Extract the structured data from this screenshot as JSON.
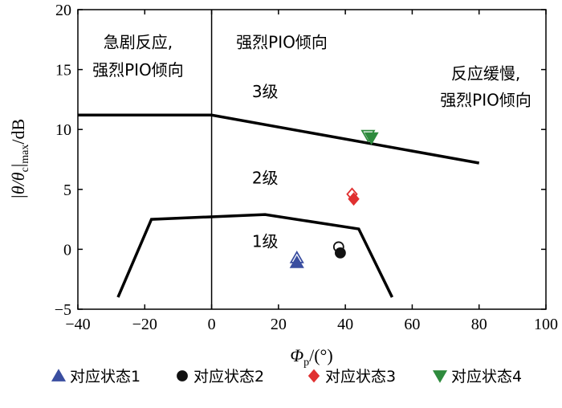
{
  "chart_data": {
    "type": "scatter",
    "title": "",
    "xlabel": {
      "main": "Φ",
      "sub": "p",
      "unit": "/(°)"
    },
    "ylabel": {
      "pre": "|θ/θ",
      "sub1": "c",
      "mid": "|",
      "sub2": "max",
      "unit": "/dB"
    },
    "xlim": [
      -40,
      100
    ],
    "ylim": [
      -5,
      20
    ],
    "xticks": [
      -40,
      -20,
      0,
      20,
      40,
      60,
      80,
      100
    ],
    "yticks": [
      -5,
      0,
      5,
      10,
      15,
      20
    ],
    "xtick_labels": [
      "−40",
      "−20",
      "0",
      "20",
      "40",
      "60",
      "80",
      "100"
    ],
    "ytick_labels": [
      "−5",
      "0",
      "5",
      "10",
      "15",
      "20"
    ],
    "grid": false,
    "legend_position": "bottom",
    "boundaries": [
      {
        "name": "level1-boundary",
        "points": [
          [
            -28,
            -4
          ],
          [
            -18,
            2.5
          ],
          [
            16,
            2.9
          ],
          [
            44,
            1.7
          ],
          [
            54,
            -4
          ]
        ]
      },
      {
        "name": "level2-boundary",
        "points": [
          [
            -40,
            11.2
          ],
          [
            0,
            11.2
          ],
          [
            80,
            7.2
          ]
        ]
      }
    ],
    "vline_x": 0,
    "series": [
      {
        "name": "对应状态1",
        "marker": "triangle-up",
        "color": "#3a4ea0",
        "points": [
          {
            "x": 25.5,
            "y": -0.7,
            "filled": false
          },
          {
            "x": 25.5,
            "y": -1.1,
            "filled": true
          }
        ]
      },
      {
        "name": "对应状态2",
        "marker": "circle",
        "color": "#111111",
        "points": [
          {
            "x": 38.5,
            "y": -0.3,
            "filled": true
          },
          {
            "x": 38.0,
            "y": 0.2,
            "filled": false
          }
        ]
      },
      {
        "name": "对应状态3",
        "marker": "diamond",
        "color": "#e03030",
        "points": [
          {
            "x": 42.0,
            "y": 4.6,
            "filled": false
          },
          {
            "x": 42.5,
            "y": 4.2,
            "filled": true
          }
        ]
      },
      {
        "name": "对应状态4",
        "marker": "triangle-down",
        "color": "#2e8b3d",
        "points": [
          {
            "x": 46.8,
            "y": 9.5,
            "filled": false
          },
          {
            "x": 47.8,
            "y": 9.3,
            "filled": true
          }
        ]
      }
    ],
    "annotations": [
      {
        "name": "region-left-line1",
        "text": "急剧反应,",
        "x": -22,
        "y": 16.8
      },
      {
        "name": "region-left-line2",
        "text": "强烈PIO倾向",
        "x": -22,
        "y": 14.5
      },
      {
        "name": "region-mid-text",
        "text": "强烈PIO倾向",
        "x": 21,
        "y": 16.8
      },
      {
        "name": "region-right-line1",
        "text": "反应缓慢,",
        "x": 82,
        "y": 14.2
      },
      {
        "name": "region-right-line2",
        "text": "强烈PIO倾向",
        "x": 82,
        "y": 12.0
      },
      {
        "name": "level3-label",
        "text": "3级",
        "x": 16,
        "y": 12.7
      },
      {
        "name": "level2-label",
        "text": "2级",
        "x": 16,
        "y": 5.5
      },
      {
        "name": "level1-label",
        "text": "1级",
        "x": 16,
        "y": 0.2
      }
    ]
  }
}
